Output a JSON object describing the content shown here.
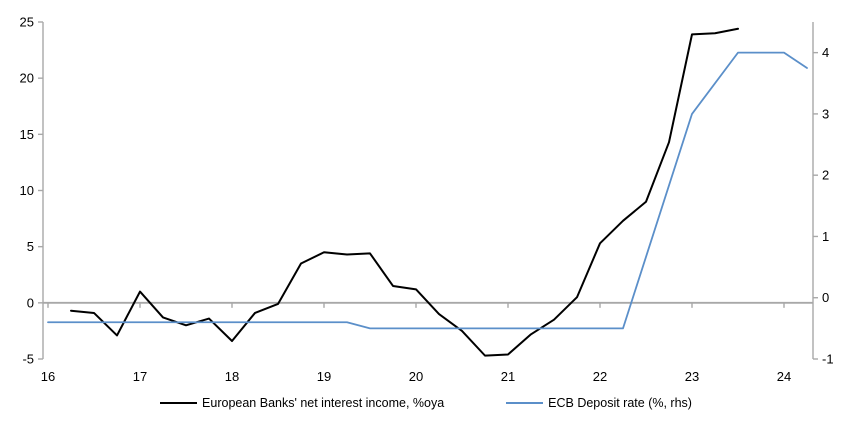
{
  "chart_data": {
    "type": "line",
    "title": "",
    "legend_position": "bottom",
    "background": "#ffffff",
    "axis_color": "#a8a8a8",
    "zero_line_color": "#a8a8a8",
    "x_axis": {
      "min": 16,
      "max": 24.3,
      "tick_values": [
        16,
        17,
        18,
        19,
        20,
        21,
        22,
        23,
        24
      ],
      "tick_labels": [
        "16",
        "17",
        "18",
        "19",
        "20",
        "21",
        "22",
        "23",
        "24"
      ]
    },
    "left_axis": {
      "min": -5,
      "max": 25,
      "tick_values": [
        -5,
        0,
        5,
        10,
        15,
        20,
        25
      ],
      "tick_labels": [
        "-5",
        "0",
        "5",
        "10",
        "15",
        "20",
        "25"
      ]
    },
    "right_axis": {
      "min": -1,
      "max": 4.5,
      "tick_values": [
        -1,
        0,
        1,
        2,
        3,
        4
      ],
      "tick_labels": [
        "-1",
        "0",
        "1",
        "2",
        "3",
        "4"
      ]
    },
    "series": [
      {
        "name": "European Banks' net interest income, %oya",
        "axis": "left",
        "color": "#000000",
        "width": 2,
        "x": [
          16.25,
          16.5,
          16.75,
          17.0,
          17.25,
          17.5,
          17.75,
          18.0,
          18.25,
          18.5,
          18.75,
          19.0,
          19.25,
          19.5,
          19.75,
          20.0,
          20.25,
          20.5,
          20.75,
          21.0,
          21.25,
          21.5,
          21.75,
          22.0,
          22.25,
          22.5,
          22.75,
          23.0,
          23.25,
          23.5
        ],
        "values": [
          -0.7,
          -0.9,
          -2.9,
          1.0,
          -1.3,
          -2.0,
          -1.4,
          -3.4,
          -0.9,
          -0.1,
          3.5,
          4.5,
          4.3,
          4.4,
          1.5,
          1.2,
          -1.0,
          -2.5,
          -4.7,
          -4.6,
          -2.8,
          -1.5,
          0.5,
          5.3,
          7.3,
          9.0,
          14.3,
          23.9,
          24.0,
          24.4
        ]
      },
      {
        "name": "ECB Deposit rate (%, rhs)",
        "axis": "right",
        "color": "#5b8fc9",
        "width": 1.8,
        "x": [
          16.0,
          19.25,
          19.5,
          22.25,
          23.0,
          23.5,
          24.0,
          24.25
        ],
        "values": [
          -0.4,
          -0.4,
          -0.5,
          -0.5,
          3.0,
          4.0,
          4.0,
          3.75
        ]
      }
    ]
  }
}
